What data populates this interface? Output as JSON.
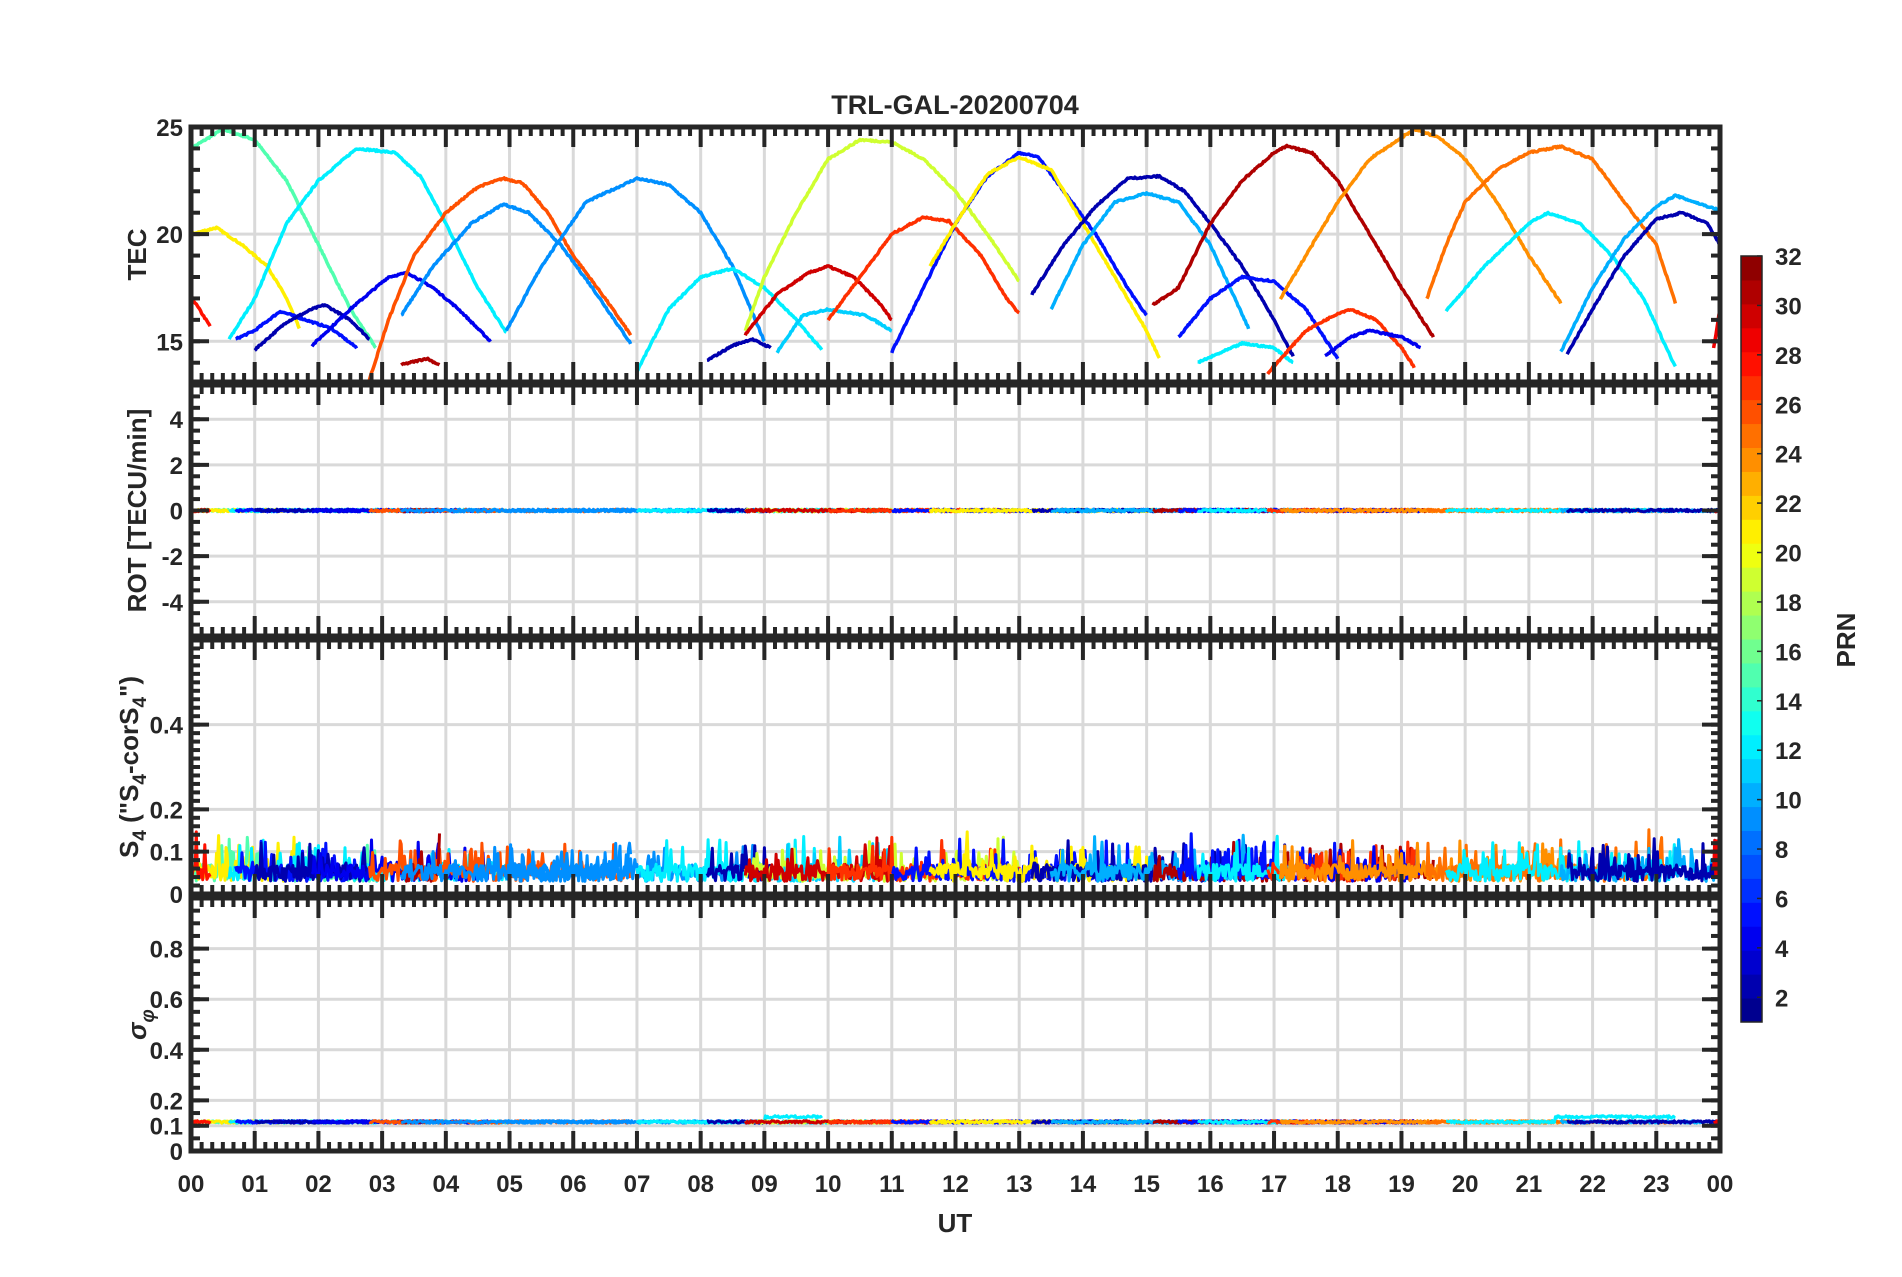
{
  "chart_data": {
    "type": "line",
    "title": "TRL-GAL-20200704",
    "xlabel": "UT",
    "xlim": [
      0,
      24
    ],
    "x_tick_labels": [
      "00",
      "01",
      "02",
      "03",
      "04",
      "05",
      "06",
      "07",
      "08",
      "09",
      "10",
      "11",
      "12",
      "13",
      "14",
      "15",
      "16",
      "17",
      "18",
      "19",
      "20",
      "21",
      "22",
      "23",
      "00"
    ],
    "grid": true,
    "colorbar": {
      "label": "PRN",
      "range": [
        1,
        32
      ],
      "tick_labels": [
        "2",
        "4",
        "6",
        "8",
        "10",
        "12",
        "14",
        "16",
        "18",
        "20",
        "22",
        "24",
        "26",
        "28",
        "30",
        "32"
      ],
      "colormap": "jet"
    },
    "panels": [
      {
        "id": "tec",
        "ylabel": "TEC",
        "ylim": [
          13.1,
          25
        ],
        "ticks": [
          15,
          20,
          25
        ],
        "tick_labels": [
          "15",
          "20",
          "25"
        ]
      },
      {
        "id": "rot",
        "ylabel": "ROT [TECU/min]",
        "ylim": [
          -5.5,
          5.5
        ],
        "ticks": [
          -4,
          -2,
          0,
          2,
          4
        ],
        "tick_labels": [
          "-4",
          "-2",
          "0",
          "2",
          "4"
        ]
      },
      {
        "id": "s4",
        "ylabel_main": "S",
        "ylabel_sub": "4",
        "ylabel_paren_open": " (\"S",
        "ylabel_paren_sub": "4",
        "ylabel_paren_mid": "-corS",
        "ylabel_paren_sub2": "4",
        "ylabel_paren_close": "\")",
        "ylim": [
          0,
          0.6
        ],
        "ticks": [
          0,
          0.1,
          0.2,
          0.4
        ],
        "tick_labels": [
          "0",
          "0.1",
          "0.2",
          "0.4"
        ],
        "typical_range": [
          0.02,
          0.12
        ],
        "max_spike": 0.18
      },
      {
        "id": "sigma",
        "ylabel_main": "σ",
        "ylabel_sub": "φ",
        "ylim": [
          0,
          1
        ],
        "ticks": [
          0,
          0.1,
          0.2,
          0.4,
          0.6,
          0.8
        ],
        "tick_labels": [
          "0",
          "0.1",
          "0.2",
          "0.4",
          "0.6",
          "0.8"
        ],
        "typical_value": 0.12
      }
    ],
    "arcs": [
      {
        "prn": 15,
        "tec": [
          [
            0,
            24
          ],
          [
            0.5,
            24.9
          ],
          [
            1,
            24.4
          ],
          [
            1.5,
            22.5
          ],
          [
            2,
            19.5
          ],
          [
            2.5,
            16.5
          ],
          [
            2.9,
            14.7
          ]
        ]
      },
      {
        "prn": 21,
        "tec": [
          [
            0,
            20
          ],
          [
            0.4,
            20.3
          ],
          [
            0.8,
            19.5
          ],
          [
            1.2,
            18.5
          ],
          [
            1.5,
            17
          ],
          [
            1.7,
            15.6
          ]
        ]
      },
      {
        "prn": 28,
        "tec": [
          [
            0,
            17.1
          ],
          [
            0.3,
            15.7
          ]
        ]
      },
      {
        "prn": 12,
        "tec": [
          [
            0.6,
            15.1
          ],
          [
            1,
            17
          ],
          [
            1.5,
            20.5
          ],
          [
            2,
            22.5
          ],
          [
            2.6,
            24
          ],
          [
            3.2,
            23.8
          ],
          [
            3.6,
            22.7
          ],
          [
            4,
            20.5
          ],
          [
            4.5,
            17.5
          ],
          [
            4.95,
            15.4
          ]
        ]
      },
      {
        "prn": 5,
        "tec": [
          [
            0.7,
            15.1
          ],
          [
            1,
            15.5
          ],
          [
            1.4,
            16.4
          ],
          [
            1.8,
            16
          ],
          [
            2.2,
            15.6
          ],
          [
            2.6,
            14.7
          ]
        ]
      },
      {
        "prn": 2,
        "tec": [
          [
            1,
            14.6
          ],
          [
            1.5,
            15.9
          ],
          [
            1.9,
            16.5
          ],
          [
            2.1,
            16.7
          ],
          [
            2.5,
            16
          ],
          [
            2.8,
            15.1
          ]
        ]
      },
      {
        "prn": 4,
        "tec": [
          [
            1.9,
            14.8
          ],
          [
            2.5,
            16.5
          ],
          [
            3.1,
            18
          ],
          [
            3.4,
            18.2
          ],
          [
            3.8,
            17.5
          ],
          [
            4.2,
            16.5
          ],
          [
            4.7,
            15
          ]
        ]
      },
      {
        "prn": 26,
        "tec": [
          [
            2.8,
            13.2
          ],
          [
            3.1,
            16
          ],
          [
            3.5,
            19
          ],
          [
            4,
            21
          ],
          [
            4.5,
            22.2
          ],
          [
            4.9,
            22.6
          ],
          [
            5.2,
            22.4
          ],
          [
            5.6,
            21
          ],
          [
            6,
            19
          ],
          [
            6.5,
            17
          ],
          [
            6.9,
            15.3
          ]
        ]
      },
      {
        "prn": 31,
        "tec": [
          [
            3.3,
            13.9
          ],
          [
            3.7,
            14.2
          ],
          [
            3.9,
            13.9
          ]
        ]
      },
      {
        "prn": 9,
        "tec": [
          [
            3.3,
            16.2
          ],
          [
            3.8,
            18.5
          ],
          [
            4.4,
            20.5
          ],
          [
            4.9,
            21.4
          ],
          [
            5.3,
            21
          ],
          [
            5.8,
            19.5
          ],
          [
            6.3,
            17.5
          ],
          [
            6.9,
            14.9
          ]
        ]
      },
      {
        "prn": 9,
        "tec": [
          [
            4.95,
            15.5
          ],
          [
            5.5,
            18.5
          ],
          [
            6.2,
            21.5
          ],
          [
            7,
            22.6
          ],
          [
            7.5,
            22.3
          ],
          [
            8,
            21
          ],
          [
            8.5,
            18.5
          ],
          [
            9,
            15
          ]
        ]
      },
      {
        "prn": 12,
        "tec": [
          [
            7,
            13.6
          ],
          [
            7.5,
            16.5
          ],
          [
            8,
            18
          ],
          [
            8.5,
            18.4
          ],
          [
            9,
            17.5
          ],
          [
            9.5,
            16
          ],
          [
            9.9,
            14.6
          ]
        ]
      },
      {
        "prn": 2,
        "tec": [
          [
            8.1,
            14.1
          ],
          [
            8.5,
            14.8
          ],
          [
            8.8,
            15.1
          ],
          [
            9.1,
            14.7
          ]
        ]
      },
      {
        "prn": 11,
        "tec": [
          [
            9.2,
            14.5
          ],
          [
            9.6,
            16.2
          ],
          [
            10,
            16.5
          ],
          [
            10.6,
            16.2
          ],
          [
            11,
            15.5
          ]
        ]
      },
      {
        "prn": 19,
        "tec": [
          [
            8.7,
            15.5
          ],
          [
            9,
            18
          ],
          [
            9.5,
            21
          ],
          [
            10,
            23.5
          ],
          [
            10.5,
            24.4
          ],
          [
            11,
            24.3
          ],
          [
            11.5,
            23.5
          ],
          [
            12,
            22
          ],
          [
            12.5,
            20
          ],
          [
            13,
            17.8
          ]
        ]
      },
      {
        "prn": 30,
        "tec": [
          [
            8.7,
            15.3
          ],
          [
            9.2,
            17.2
          ],
          [
            9.7,
            18.2
          ],
          [
            10,
            18.5
          ],
          [
            10.4,
            18
          ],
          [
            10.8,
            16.8
          ],
          [
            11,
            16
          ]
        ]
      },
      {
        "prn": 27,
        "tec": [
          [
            10,
            16
          ],
          [
            10.5,
            18
          ],
          [
            11,
            20
          ],
          [
            11.5,
            20.8
          ],
          [
            11.9,
            20.6
          ],
          [
            12.4,
            19
          ],
          [
            12.8,
            17
          ],
          [
            13,
            16.3
          ]
        ]
      },
      {
        "prn": 5,
        "tec": [
          [
            11,
            14.5
          ],
          [
            11.5,
            17.5
          ],
          [
            12,
            20.5
          ],
          [
            12.5,
            22.7
          ],
          [
            13,
            23.8
          ],
          [
            13.3,
            23.6
          ],
          [
            13.7,
            22
          ],
          [
            14.2,
            20
          ],
          [
            14.7,
            17.5
          ],
          [
            15,
            16.2
          ]
        ]
      },
      {
        "prn": 21,
        "tec": [
          [
            11.6,
            18.5
          ],
          [
            12,
            20.5
          ],
          [
            12.5,
            22.8
          ],
          [
            13,
            23.6
          ],
          [
            13.5,
            23
          ],
          [
            14,
            20.5
          ],
          [
            14.5,
            18
          ],
          [
            15,
            15.5
          ],
          [
            15.2,
            14.2
          ]
        ]
      },
      {
        "prn": 2,
        "tec": [
          [
            13.2,
            17.2
          ],
          [
            13.7,
            19.5
          ],
          [
            14.2,
            21.3
          ],
          [
            14.7,
            22.6
          ],
          [
            15.2,
            22.7
          ],
          [
            15.6,
            22
          ],
          [
            16,
            20.5
          ],
          [
            16.5,
            18.5
          ],
          [
            17,
            16
          ],
          [
            17.3,
            14.3
          ]
        ]
      },
      {
        "prn": 10,
        "tec": [
          [
            13.5,
            16.5
          ],
          [
            14,
            19.5
          ],
          [
            14.5,
            21.5
          ],
          [
            15,
            21.9
          ],
          [
            15.5,
            21.5
          ],
          [
            16,
            19.5
          ],
          [
            16.6,
            15.6
          ]
        ]
      },
      {
        "prn": 31,
        "tec": [
          [
            15.1,
            16.7
          ],
          [
            15.5,
            17.5
          ],
          [
            16,
            20.5
          ],
          [
            16.5,
            22.5
          ],
          [
            17,
            23.8
          ],
          [
            17.2,
            24.1
          ],
          [
            17.6,
            23.8
          ],
          [
            18,
            22.5
          ],
          [
            18.5,
            20
          ],
          [
            19,
            17.5
          ],
          [
            19.5,
            15.2
          ]
        ]
      },
      {
        "prn": 5,
        "tec": [
          [
            15.5,
            15.2
          ],
          [
            16,
            17
          ],
          [
            16.5,
            18
          ],
          [
            17,
            17.8
          ],
          [
            17.5,
            16.5
          ],
          [
            18,
            14.2
          ]
        ]
      },
      {
        "prn": 12,
        "tec": [
          [
            15.8,
            14
          ],
          [
            16.5,
            14.9
          ],
          [
            17,
            14.7
          ],
          [
            17.3,
            14
          ]
        ]
      },
      {
        "prn": 27,
        "tec": [
          [
            16.9,
            13.5
          ],
          [
            17.5,
            15.5
          ],
          [
            18,
            16.3
          ],
          [
            18.2,
            16.5
          ],
          [
            18.6,
            16
          ],
          [
            19,
            14.7
          ],
          [
            19.2,
            13.8
          ]
        ]
      },
      {
        "prn": 4,
        "tec": [
          [
            17.8,
            14.3
          ],
          [
            18.2,
            15.2
          ],
          [
            18.5,
            15.5
          ],
          [
            19,
            15.2
          ],
          [
            19.3,
            14.7
          ]
        ]
      },
      {
        "prn": 24,
        "tec": [
          [
            17.1,
            17
          ],
          [
            17.5,
            19
          ],
          [
            18,
            21.5
          ],
          [
            18.5,
            23.5
          ],
          [
            19,
            24.5
          ],
          [
            19.2,
            24.9
          ],
          [
            19.6,
            24.5
          ],
          [
            20,
            23.5
          ],
          [
            20.5,
            21.5
          ],
          [
            21,
            19
          ],
          [
            21.5,
            16.8
          ]
        ]
      },
      {
        "prn": 25,
        "tec": [
          [
            19.4,
            17
          ],
          [
            19.7,
            19.5
          ],
          [
            20,
            21.5
          ],
          [
            20.5,
            23
          ],
          [
            21,
            23.8
          ],
          [
            21.5,
            24.1
          ],
          [
            22,
            23.5
          ],
          [
            22.5,
            21.5
          ],
          [
            23,
            19.5
          ],
          [
            23.3,
            16.8
          ]
        ]
      },
      {
        "prn": 12,
        "tec": [
          [
            19.7,
            16.4
          ],
          [
            20.3,
            18.5
          ],
          [
            21,
            20.5
          ],
          [
            21.3,
            21
          ],
          [
            21.8,
            20.5
          ],
          [
            22.3,
            19
          ],
          [
            22.8,
            17
          ],
          [
            23.3,
            13.8
          ]
        ]
      },
      {
        "prn": 10,
        "tec": [
          [
            21.5,
            14.5
          ],
          [
            22,
            17.5
          ],
          [
            22.5,
            19.8
          ],
          [
            23,
            21.3
          ],
          [
            23.3,
            21.8
          ],
          [
            23.7,
            21.4
          ],
          [
            24,
            21.1
          ]
        ]
      },
      {
        "prn": 2,
        "tec": [
          [
            21.6,
            14.4
          ],
          [
            22,
            16.5
          ],
          [
            22.5,
            19
          ],
          [
            23,
            20.7
          ],
          [
            23.4,
            21
          ],
          [
            23.8,
            20.5
          ],
          [
            24,
            19.5
          ]
        ]
      },
      {
        "prn": 29,
        "tec": [
          [
            23.9,
            14.7
          ],
          [
            24,
            16.5
          ]
        ]
      }
    ]
  }
}
